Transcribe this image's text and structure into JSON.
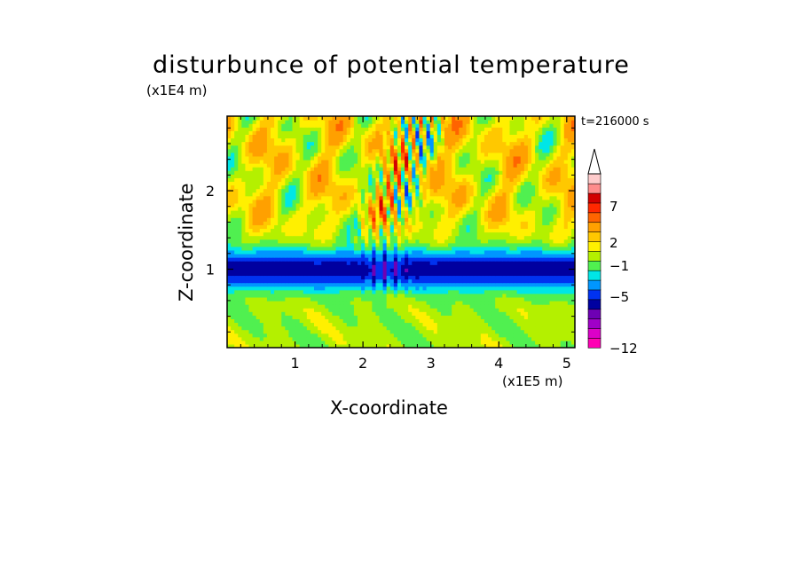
{
  "chart_data": {
    "type": "heatmap",
    "title": "disturbunce of potential temperature",
    "xlabel": "X-coordinate",
    "ylabel": "Z-coordinate",
    "x_multiplier": "(x1E5 m)",
    "y_multiplier": "(x1E4 m)",
    "time_label": "t=216000 s",
    "xlim": [
      0,
      5.12
    ],
    "ylim": [
      0,
      2.95
    ],
    "x_ticks": [
      "1",
      "2",
      "3",
      "4",
      "5"
    ],
    "y_ticks": [
      "1",
      "2"
    ],
    "colorbar": {
      "labels": [
        "7",
        "2",
        "−1",
        "−5",
        "−12"
      ],
      "colors": [
        "#ff00b4",
        "#dc00c8",
        "#a000c8",
        "#6e00b4",
        "#0000a0",
        "#0032f0",
        "#0096ff",
        "#00e6e6",
        "#50f050",
        "#b4f000",
        "#fff000",
        "#ffc800",
        "#ffa000",
        "#ff6400",
        "#ff2800",
        "#d20000",
        "#ff8c8c",
        "#ffcccc"
      ],
      "extend": "max"
    },
    "field_description": {
      "band": "strong negative band (blue) between z ≈ 0.7 and 1.3 (x1E4 m) across all x",
      "upper": "mixed positive/negative anomalies (green/yellow/orange) with wave beams above x ≈ 1.8–2.8",
      "lower": "weak anomalies (green/yellow) below z ≈ 0.7"
    }
  }
}
